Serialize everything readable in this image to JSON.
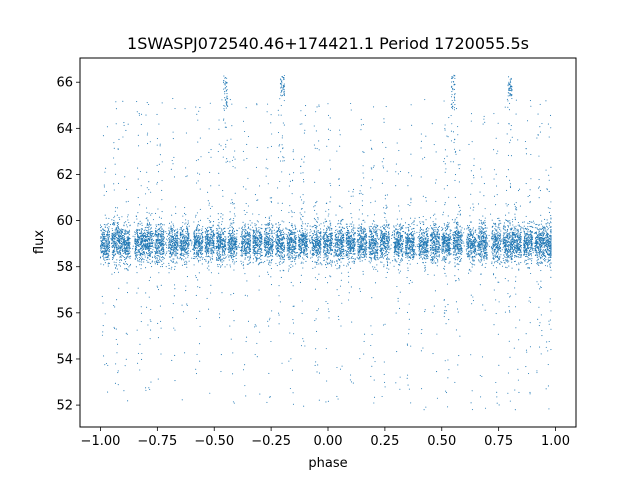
{
  "chart_data": {
    "type": "scatter",
    "title": "1SWASPJ072540.46+174421.1 Period 1720055.5s",
    "xlabel": "phase",
    "ylabel": "flux",
    "xlim": [
      -1.09,
      1.09
    ],
    "ylim": [
      51.05,
      67.05
    ],
    "xticks": [
      -1.0,
      -0.75,
      -0.5,
      -0.25,
      0.0,
      0.25,
      0.5,
      0.75,
      1.0
    ],
    "xtick_labels": [
      "−1.00",
      "−0.75",
      "−0.50",
      "−0.25",
      "0.00",
      "0.25",
      "0.50",
      "0.75",
      "1.00"
    ],
    "yticks": [
      52,
      54,
      56,
      58,
      60,
      62,
      64,
      66
    ],
    "ytick_labels": [
      "52",
      "54",
      "56",
      "58",
      "60",
      "62",
      "64",
      "66"
    ],
    "grid": false,
    "legend": "none",
    "marker_color": "#1f77b4",
    "series": [
      {
        "baseline_flux": 59.0,
        "band_range": [
          58.2,
          59.9
        ],
        "phase_range": [
          -1.0,
          0.98
        ],
        "observation_clusters_phase": [
          -0.98,
          -0.93,
          -0.89,
          -0.83,
          -0.79,
          -0.74,
          -0.68,
          -0.63,
          -0.57,
          -0.52,
          -0.47,
          -0.42,
          -0.36,
          -0.31,
          -0.26,
          -0.21,
          -0.16,
          -0.11,
          -0.05,
          0.0,
          0.05,
          0.1,
          0.15,
          0.2,
          0.25,
          0.31,
          0.36,
          0.42,
          0.47,
          0.52,
          0.57,
          0.63,
          0.68,
          0.74,
          0.79,
          0.83,
          0.88,
          0.93,
          0.97
        ],
        "outlier_clusters": [
          {
            "phase": -0.45,
            "flux_range": [
              64.8,
              66.3
            ]
          },
          {
            "phase": -0.2,
            "flux_range": [
              65.4,
              66.3
            ]
          },
          {
            "phase": 0.55,
            "flux_range": [
              64.8,
              66.3
            ]
          },
          {
            "phase": 0.8,
            "flux_range": [
              65.4,
              66.3
            ]
          }
        ],
        "flux_min": 51.8,
        "flux_max": 66.4
      }
    ]
  }
}
